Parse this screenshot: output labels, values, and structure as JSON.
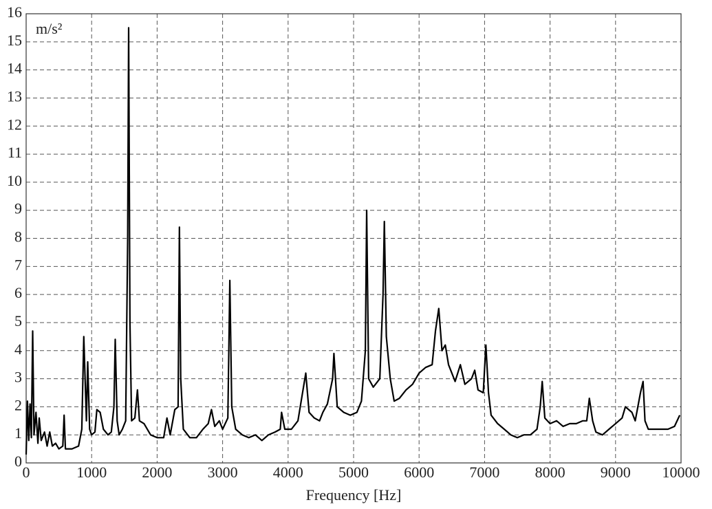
{
  "chart_data": {
    "type": "line",
    "ylabel": "m/s²",
    "xlabel": "Frequency [Hz]",
    "xlim": [
      0,
      10000
    ],
    "ylim": [
      0,
      16
    ],
    "xticks": [
      0,
      1000,
      2000,
      3000,
      4000,
      5000,
      6000,
      7000,
      8000,
      9000,
      10000
    ],
    "yticks": [
      0,
      1,
      2,
      3,
      4,
      5,
      6,
      7,
      8,
      9,
      10,
      11,
      12,
      13,
      14,
      15,
      16
    ],
    "grid": true,
    "series": [
      {
        "color": "#000000",
        "x": [
          0,
          20,
          40,
          60,
          80,
          100,
          120,
          150,
          180,
          200,
          230,
          280,
          320,
          360,
          400,
          450,
          500,
          560,
          580,
          600,
          700,
          800,
          850,
          880,
          920,
          940,
          970,
          1000,
          1050,
          1080,
          1130,
          1180,
          1250,
          1300,
          1340,
          1360,
          1390,
          1420,
          1470,
          1520,
          1550,
          1565,
          1585,
          1610,
          1660,
          1700,
          1730,
          1800,
          1900,
          2000,
          2100,
          2150,
          2200,
          2270,
          2320,
          2340,
          2360,
          2400,
          2500,
          2600,
          2700,
          2780,
          2830,
          2880,
          2950,
          3000,
          3080,
          3110,
          3140,
          3200,
          3300,
          3400,
          3500,
          3600,
          3700,
          3800,
          3880,
          3900,
          3950,
          4050,
          4150,
          4200,
          4270,
          4320,
          4400,
          4480,
          4530,
          4600,
          4680,
          4700,
          4750,
          4850,
          4950,
          5050,
          5120,
          5180,
          5200,
          5230,
          5300,
          5400,
          5450,
          5470,
          5500,
          5560,
          5620,
          5700,
          5800,
          5900,
          6000,
          6100,
          6200,
          6250,
          6300,
          6350,
          6400,
          6450,
          6550,
          6630,
          6700,
          6800,
          6850,
          6900,
          6980,
          7020,
          7060,
          7100,
          7200,
          7300,
          7400,
          7500,
          7600,
          7700,
          7800,
          7850,
          7880,
          7920,
          8000,
          8100,
          8200,
          8300,
          8400,
          8500,
          8560,
          8600,
          8650,
          8700,
          8800,
          8900,
          9000,
          9100,
          9150,
          9250,
          9300,
          9380,
          9420,
          9450,
          9500,
          9600,
          9700,
          9800,
          9900,
          9980
        ],
        "values": [
          0.3,
          2.2,
          0.8,
          2.1,
          0.9,
          4.7,
          1.0,
          1.8,
          0.7,
          1.6,
          0.8,
          1.1,
          0.6,
          1.1,
          0.6,
          0.7,
          0.5,
          0.6,
          1.7,
          0.5,
          0.5,
          0.6,
          1.2,
          4.5,
          1.5,
          3.6,
          1.2,
          1.0,
          1.1,
          1.9,
          1.8,
          1.2,
          1.0,
          1.1,
          2.0,
          4.4,
          1.5,
          1.0,
          1.2,
          1.5,
          8.0,
          15.5,
          5.0,
          1.5,
          1.6,
          2.6,
          1.5,
          1.4,
          1.0,
          0.9,
          0.9,
          1.6,
          1.0,
          1.9,
          2.0,
          8.4,
          3.0,
          1.2,
          0.9,
          0.9,
          1.2,
          1.4,
          1.9,
          1.3,
          1.5,
          1.2,
          1.6,
          6.5,
          2.0,
          1.2,
          1.0,
          0.9,
          1.0,
          0.8,
          1.0,
          1.1,
          1.2,
          1.8,
          1.2,
          1.2,
          1.5,
          2.2,
          3.2,
          1.8,
          1.6,
          1.5,
          1.8,
          2.1,
          3.0,
          3.9,
          2.0,
          1.8,
          1.7,
          1.8,
          2.2,
          4.0,
          9.0,
          3.0,
          2.7,
          3.0,
          6.0,
          8.6,
          4.5,
          3.0,
          2.2,
          2.3,
          2.6,
          2.8,
          3.2,
          3.4,
          3.5,
          4.7,
          5.5,
          4.0,
          4.2,
          3.5,
          2.9,
          3.5,
          2.8,
          3.0,
          3.3,
          2.6,
          2.5,
          4.2,
          2.5,
          1.7,
          1.4,
          1.2,
          1.0,
          0.9,
          1.0,
          1.0,
          1.2,
          2.0,
          2.9,
          1.6,
          1.4,
          1.5,
          1.3,
          1.4,
          1.4,
          1.5,
          1.5,
          2.3,
          1.5,
          1.1,
          1.0,
          1.2,
          1.4,
          1.6,
          2.0,
          1.8,
          1.5,
          2.5,
          2.9,
          1.5,
          1.2,
          1.2,
          1.2,
          1.2,
          1.3,
          1.7
        ]
      }
    ]
  }
}
